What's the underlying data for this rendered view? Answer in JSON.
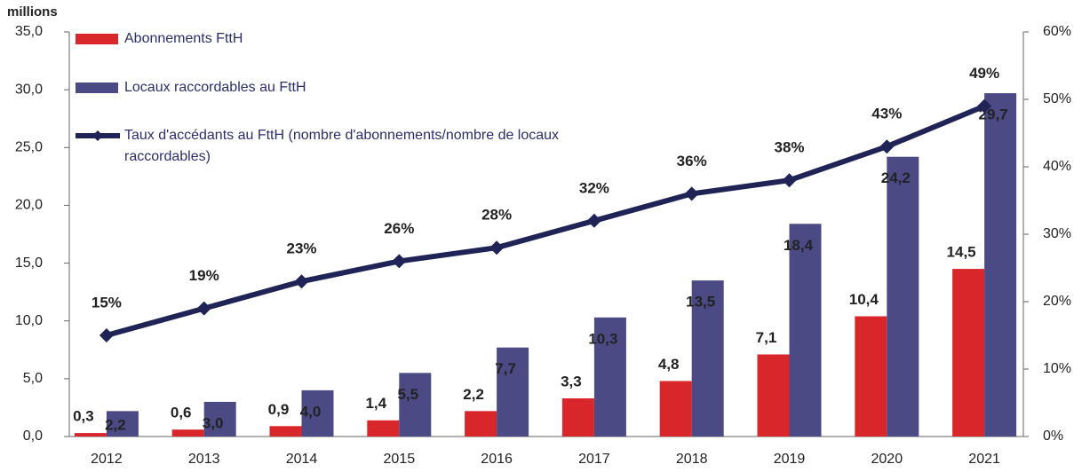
{
  "chart_data": {
    "type": "bar",
    "y_label": "millions",
    "categories": [
      "2012",
      "2013",
      "2014",
      "2015",
      "2016",
      "2017",
      "2018",
      "2019",
      "2020",
      "2021"
    ],
    "series": [
      {
        "name": "Abonnements FttH",
        "color": "#d9262b",
        "values": [
          0.3,
          0.6,
          0.9,
          1.4,
          2.2,
          3.3,
          4.8,
          7.1,
          10.4,
          14.5
        ],
        "value_labels": [
          "0,3",
          "0,6",
          "0,9",
          "1,4",
          "2,2",
          "3,3",
          "4,8",
          "7,1",
          "10,4",
          "14,5"
        ]
      },
      {
        "name": "Locaux raccordables au FttH",
        "color": "#4b4a85",
        "values": [
          2.2,
          3.0,
          4.0,
          5.5,
          7.7,
          10.3,
          13.5,
          18.4,
          24.2,
          29.7
        ],
        "value_labels": [
          "2,2",
          "3,0",
          "4,0",
          "5,5",
          "7,7",
          "10,3",
          "13,5",
          "18,4",
          "24,2",
          "29,7"
        ]
      },
      {
        "name": "Taux d'accédants au FttH (nombre d'abonnements/nombre de locaux raccordables)",
        "type": "line",
        "axis": "y2",
        "color": "#1f2356",
        "values": [
          15,
          19,
          23,
          26,
          28,
          32,
          36,
          38,
          43,
          49
        ],
        "value_labels": [
          "15%",
          "19%",
          "23%",
          "26%",
          "28%",
          "32%",
          "36%",
          "38%",
          "43%",
          "49%"
        ]
      }
    ],
    "ylim": [
      0,
      35
    ],
    "yticks": [
      {
        "value": 0,
        "label": "0,0"
      },
      {
        "value": 5,
        "label": "5,0"
      },
      {
        "value": 10,
        "label": "10,0"
      },
      {
        "value": 15,
        "label": "15,0"
      },
      {
        "value": 20,
        "label": "20,0"
      },
      {
        "value": 25,
        "label": "25,0"
      },
      {
        "value": 30,
        "label": "30,0"
      },
      {
        "value": 35,
        "label": "35,0"
      }
    ],
    "y2lim": [
      0,
      60
    ],
    "y2ticks": [
      {
        "value": 0,
        "label": "0%"
      },
      {
        "value": 10,
        "label": "10%"
      },
      {
        "value": 20,
        "label": "20%"
      },
      {
        "value": 30,
        "label": "30%"
      },
      {
        "value": 40,
        "label": "40%"
      },
      {
        "value": 50,
        "label": "50%"
      },
      {
        "value": 60,
        "label": "60%"
      }
    ]
  }
}
